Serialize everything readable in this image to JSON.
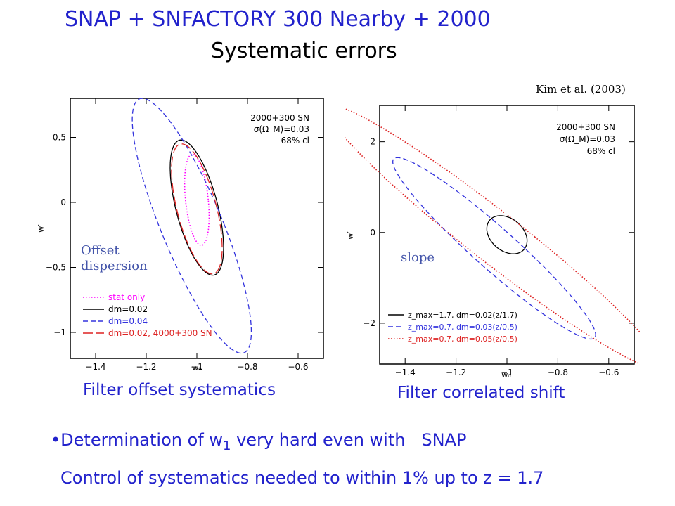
{
  "header": {
    "title_line1": "SNAP   + SNFACTORY 300 Nearby + 2000",
    "title_line2": "Systematic errors",
    "citation": "Kim et al. (2003)"
  },
  "captions": {
    "left": "Filter offset systematics",
    "right": "Filter correlated shift"
  },
  "bullets": {
    "line1": "•Determination of w",
    "line1_sub": "1",
    "line1_rest": " very hard even with   SNAP",
    "line2": "Control of systematics needed to within 1% up to z = 1.7"
  },
  "annotations": {
    "left_line1": "Offset",
    "left_line2": "dispersion",
    "right": "slope"
  },
  "colors": {
    "title": "#2222cc",
    "stat_only": "#ff00ff",
    "black": "#000000",
    "blue": "#3333dd",
    "red": "#dd2222"
  },
  "chart_data": [
    {
      "type": "line",
      "xlabel": "w₀",
      "ylabel": "w′",
      "xlim": [
        -1.5,
        -0.5
      ],
      "ylim": [
        -1.2,
        0.8
      ],
      "xticks": [
        -1.4,
        -1.2,
        -1,
        -0.8,
        -0.6
      ],
      "xtick_labels": [
        "−1.4",
        "−1.2",
        "−1",
        "−0.8",
        "−0.6"
      ],
      "yticks": [
        0.5,
        0,
        -0.5,
        -1
      ],
      "ytick_labels": [
        "0.5",
        "0",
        "−0.5",
        "−1"
      ],
      "info": [
        "2000+300 SN",
        "σ(Ω_M)=0.03",
        "68% cl"
      ],
      "series": [
        {
          "name": "stat only",
          "style": "dotted",
          "color": "#ff00ff",
          "ellipse": {
            "cx": -1.0,
            "cy": 0.02,
            "rx": 0.045,
            "ry": 0.35,
            "tilt": 0.05
          }
        },
        {
          "name": "dm=0.02",
          "style": "solid",
          "color": "#000000",
          "ellipse": {
            "cx": -1.0,
            "cy": -0.04,
            "rx": 0.085,
            "ry": 0.52,
            "tilt": 0.12
          }
        },
        {
          "name": "dm=0.04",
          "style": "dashed",
          "color": "#3333dd",
          "ellipse": {
            "cx": -1.02,
            "cy": -0.18,
            "rx": 0.13,
            "ry": 0.98,
            "tilt": 0.2
          }
        },
        {
          "name": "dm=0.02, 4000+300 SN",
          "style": "longdash",
          "color": "#dd2222",
          "ellipse": {
            "cx": -1.0,
            "cy": -0.05,
            "rx": 0.08,
            "ry": 0.5,
            "tilt": 0.12
          }
        }
      ]
    },
    {
      "type": "line",
      "xlabel": "w₀",
      "ylabel": "w′",
      "xlim": [
        -1.5,
        -0.5
      ],
      "ylim": [
        -2.9,
        2.8
      ],
      "xticks": [
        -1.4,
        -1.2,
        -1,
        -0.8,
        -0.6
      ],
      "xtick_labels": [
        "−1.4",
        "−1.2",
        "−1",
        "−0.8",
        "−0.6"
      ],
      "yticks": [
        2,
        0,
        -2
      ],
      "ytick_labels": [
        "2",
        "0",
        "−2"
      ],
      "info": [
        "2000+300 SN",
        "σ(Ω_M)=0.03",
        "68% cl"
      ],
      "series": [
        {
          "name": "z_max=1.7, dm=0.02(z/1.7)",
          "style": "solid",
          "color": "#000000",
          "ellipse": {
            "cx": -1.0,
            "cy": -0.05,
            "rx": 0.075,
            "ry": 0.42,
            "tilt": 0.06
          }
        },
        {
          "name": "z_max=0.7, dm=0.03(z/0.5)",
          "style": "dashed",
          "color": "#3333dd",
          "ellipse": {
            "cx": -1.05,
            "cy": -0.35,
            "rx": 0.12,
            "ry": 2.0,
            "tilt": 0.19
          }
        },
        {
          "name": "z_max=0.7, dm=0.05(z/0.5)",
          "style": "dotted",
          "color": "#dd2222",
          "ellipse": {
            "cx": -1.05,
            "cy": -0.1,
            "rx": 0.16,
            "ry": 2.9,
            "tilt": 0.22
          }
        }
      ]
    }
  ]
}
